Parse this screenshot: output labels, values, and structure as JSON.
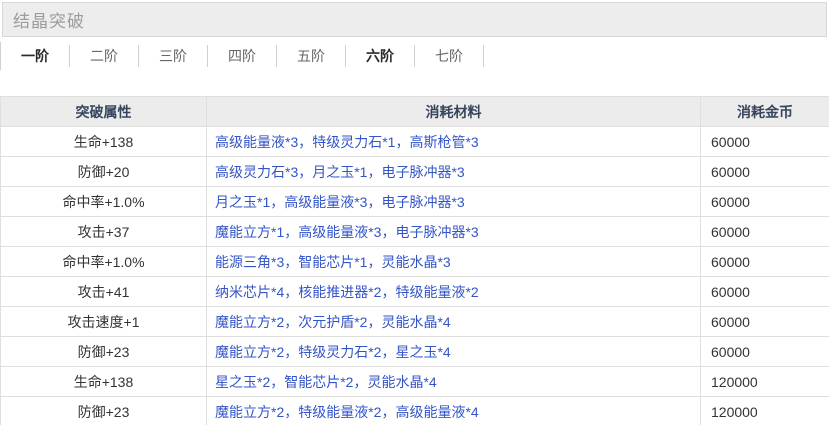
{
  "page": {
    "title": "结晶突破"
  },
  "tabs": [
    {
      "label": "一阶",
      "active": true
    },
    {
      "label": "二阶",
      "active": false
    },
    {
      "label": "三阶",
      "active": false
    },
    {
      "label": "四阶",
      "active": false
    },
    {
      "label": "五阶",
      "active": false
    },
    {
      "label": "六阶",
      "active": true
    },
    {
      "label": "七阶",
      "active": false
    }
  ],
  "table": {
    "headers": {
      "attribute": "突破属性",
      "materials": "消耗材料",
      "gold": "消耗金币"
    },
    "rows": [
      {
        "attribute": "生命+138",
        "materials": "高级能量液*3，特级灵力石*1，高斯枪管*3",
        "gold": "60000"
      },
      {
        "attribute": "防御+20",
        "materials": "高级灵力石*3，月之玉*1，电子脉冲器*3",
        "gold": "60000"
      },
      {
        "attribute": "命中率+1.0%",
        "materials": "月之玉*1，高级能量液*3，电子脉冲器*3",
        "gold": "60000"
      },
      {
        "attribute": "攻击+37",
        "materials": "魔能立方*1，高级能量液*3，电子脉冲器*3",
        "gold": "60000"
      },
      {
        "attribute": "命中率+1.0%",
        "materials": "能源三角*3，智能芯片*1，灵能水晶*3",
        "gold": "60000"
      },
      {
        "attribute": "攻击+41",
        "materials": "纳米芯片*4，核能推进器*2，特级能量液*2",
        "gold": "60000"
      },
      {
        "attribute": "攻击速度+1",
        "materials": "魔能立方*2，次元护盾*2，灵能水晶*4",
        "gold": "60000"
      },
      {
        "attribute": "防御+23",
        "materials": "魔能立方*2，特级灵力石*2，星之玉*4",
        "gold": "60000"
      },
      {
        "attribute": "生命+138",
        "materials": "星之玉*2，智能芯片*2，灵能水晶*4",
        "gold": "120000"
      },
      {
        "attribute": "防御+23",
        "materials": "魔能立方*2，特级能量液*2，高级能量液*4",
        "gold": "120000"
      }
    ]
  },
  "colors": {
    "material_link_text": "#3455c8",
    "table_header_text": "#36455c",
    "table_header_bg": "#ececec",
    "table_border": "#dfdfdf",
    "active_tab_text": "#2b2b2b",
    "inactive_tab_text": "#666666",
    "title_text": "#9c9c9c",
    "title_bg": "#ededed"
  }
}
